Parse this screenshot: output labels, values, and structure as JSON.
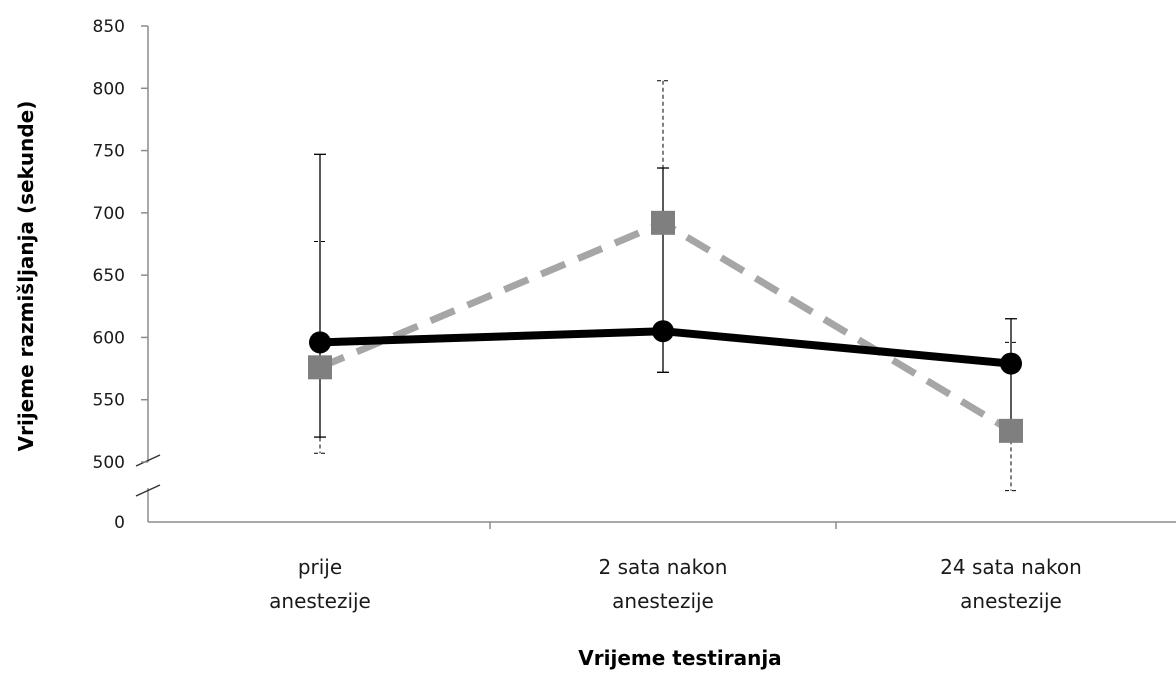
{
  "chart_data": {
    "type": "line",
    "xlabel": "Vrijeme testiranja",
    "ylabel": "Vrijeme razmišljanja (sekunde)",
    "categories": [
      [
        "prije",
        "anestezije"
      ],
      [
        "2 sata nakon",
        "anestezije"
      ],
      [
        "24 sata nakon",
        "anestezije"
      ]
    ],
    "ylim": [
      500,
      850
    ],
    "y_ticks": [
      500,
      550,
      600,
      650,
      700,
      750,
      800,
      850
    ],
    "y_ticks_labels": [
      "500",
      "550",
      "600",
      "650",
      "700",
      "750",
      "800",
      "850"
    ],
    "axis_break": true,
    "axis_zero_label": "0",
    "grid": false,
    "series": [
      {
        "marker": "circle",
        "line_style": "solid",
        "color": "#000000",
        "values": [
          596,
          605,
          579
        ],
        "error_upper": [
          747,
          736,
          615
        ],
        "error_lower": [
          520,
          572,
          518
        ]
      },
      {
        "marker": "square",
        "line_style": "dashed",
        "color": "#a6a6a6",
        "marker_color": "#7f7f7f",
        "values": [
          576,
          692,
          525
        ],
        "error_upper": [
          677,
          806,
          596
        ],
        "error_lower": [
          507,
          572,
          477
        ]
      }
    ]
  }
}
